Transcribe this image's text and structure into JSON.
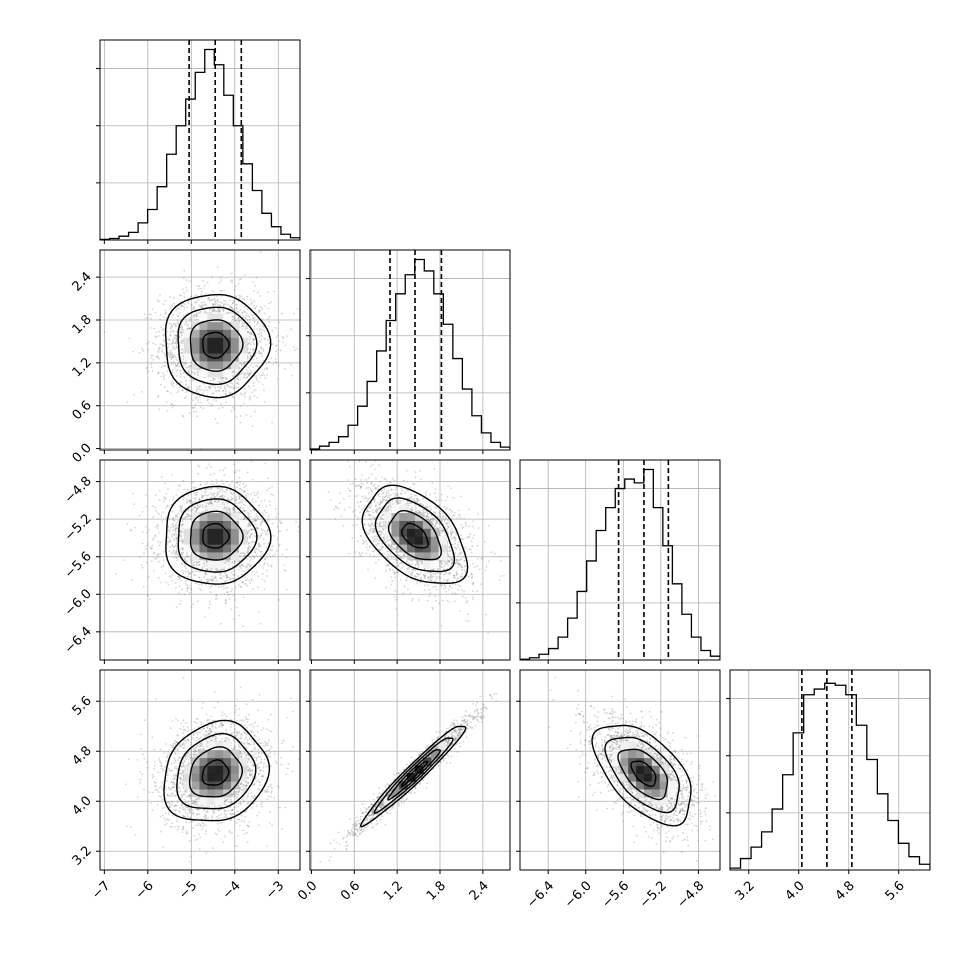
{
  "chart_data": {
    "type": "corner",
    "title": "",
    "grid": true,
    "parameters": [
      {
        "index": 0,
        "range": [
          -7.1,
          -2.5
        ],
        "ticks": [
          -7,
          -6,
          -5,
          -4,
          -3
        ],
        "tick_labels": [
          "−7",
          "−6",
          "−5",
          "−4",
          "−3"
        ],
        "quantiles": [
          -5.05,
          -4.45,
          -3.85
        ],
        "hist": [
          0.003,
          0.008,
          0.02,
          0.04,
          0.09,
          0.16,
          0.28,
          0.45,
          0.6,
          0.74,
          0.88,
          1.0,
          0.92,
          0.76,
          0.6,
          0.4,
          0.26,
          0.14,
          0.07,
          0.03,
          0.012
        ]
      },
      {
        "index": 1,
        "range": [
          -0.02,
          2.78
        ],
        "ticks": [
          0.0,
          0.6,
          1.2,
          1.8,
          2.4
        ],
        "tick_labels": [
          "0.0",
          "0.6",
          "1.2",
          "1.8",
          "2.4"
        ],
        "quantiles": [
          1.1,
          1.45,
          1.82
        ],
        "hist": [
          0.005,
          0.02,
          0.04,
          0.07,
          0.13,
          0.23,
          0.36,
          0.52,
          0.68,
          0.82,
          0.92,
          1.0,
          0.94,
          0.82,
          0.66,
          0.48,
          0.32,
          0.18,
          0.09,
          0.04,
          0.015
        ]
      },
      {
        "index": 2,
        "range": [
          -6.7,
          -4.57
        ],
        "ticks": [
          -6.4,
          -6.0,
          -5.6,
          -5.2,
          -4.8
        ],
        "tick_labels": [
          "−6.4",
          "−6.0",
          "−5.6",
          "−5.2",
          "−4.8"
        ],
        "quantiles": [
          -5.65,
          -5.38,
          -5.12
        ],
        "hist": [
          0.004,
          0.012,
          0.03,
          0.06,
          0.12,
          0.22,
          0.36,
          0.52,
          0.68,
          0.8,
          0.9,
          0.95,
          0.93,
          1.0,
          0.8,
          0.6,
          0.4,
          0.24,
          0.12,
          0.05,
          0.02
        ]
      },
      {
        "index": 3,
        "range": [
          2.9,
          6.1
        ],
        "ticks": [
          3.2,
          4.0,
          4.8,
          5.6
        ],
        "tick_labels": [
          "3.2",
          "4.0",
          "4.8",
          "5.6"
        ],
        "quantiles": [
          4.05,
          4.45,
          4.85
        ],
        "hist": [
          0.01,
          0.06,
          0.12,
          0.2,
          0.32,
          0.5,
          0.72,
          0.92,
          0.95,
          0.98,
          0.97,
          0.92,
          0.76,
          0.58,
          0.4,
          0.26,
          0.14,
          0.07,
          0.03
        ]
      }
    ],
    "means": [
      -4.45,
      1.45,
      -5.38,
      4.45
    ],
    "stds": [
      0.6,
      0.36,
      0.26,
      0.4
    ],
    "correlations": {
      "1_0": 0.0,
      "2_0": 0.0,
      "2_1": -0.45,
      "3_0": 0.15,
      "3_1": 0.97,
      "3_2": -0.55
    },
    "contour_levels": [
      0.118,
      0.393,
      0.675,
      0.865
    ],
    "colors": {
      "line": "#000000",
      "grid": "#b0b0b0",
      "points": "#888888",
      "density_dark": "#000000",
      "background": "#ffffff"
    }
  }
}
